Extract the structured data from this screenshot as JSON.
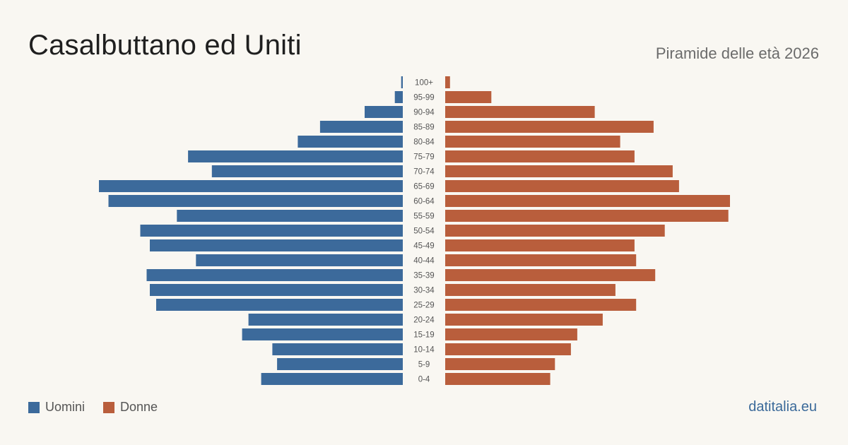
{
  "header": {
    "title": "Casalbuttano ed Uniti",
    "subtitle": "Piramide delle età 2026"
  },
  "legend": {
    "men_label": "Uomini",
    "women_label": "Donne"
  },
  "footer": {
    "source": "datitalia.eu"
  },
  "colors": {
    "men": "#3c6a9b",
    "women": "#b95e3c",
    "background": "#f9f7f2"
  },
  "chart_data": {
    "type": "bar",
    "orientation": "horizontal-pyramid",
    "categories": [
      "100+",
      "95-99",
      "90-94",
      "85-89",
      "80-84",
      "75-79",
      "70-74",
      "65-69",
      "60-64",
      "55-59",
      "50-54",
      "45-49",
      "40-44",
      "35-39",
      "30-34",
      "25-29",
      "20-24",
      "15-19",
      "10-14",
      "5-9",
      "0-4"
    ],
    "series": [
      {
        "name": "Uomini",
        "values": [
          1,
          5,
          24,
          52,
          66,
          135,
          120,
          191,
          185,
          142,
          165,
          159,
          130,
          161,
          159,
          155,
          97,
          101,
          82,
          79,
          89
        ]
      },
      {
        "name": "Donne",
        "values": [
          3,
          29,
          94,
          131,
          110,
          119,
          143,
          147,
          179,
          178,
          138,
          119,
          120,
          132,
          107,
          120,
          99,
          83,
          79,
          69,
          66
        ]
      }
    ],
    "xlim": [
      0,
      191
    ],
    "grid": false,
    "legend_position": "bottom-left"
  }
}
